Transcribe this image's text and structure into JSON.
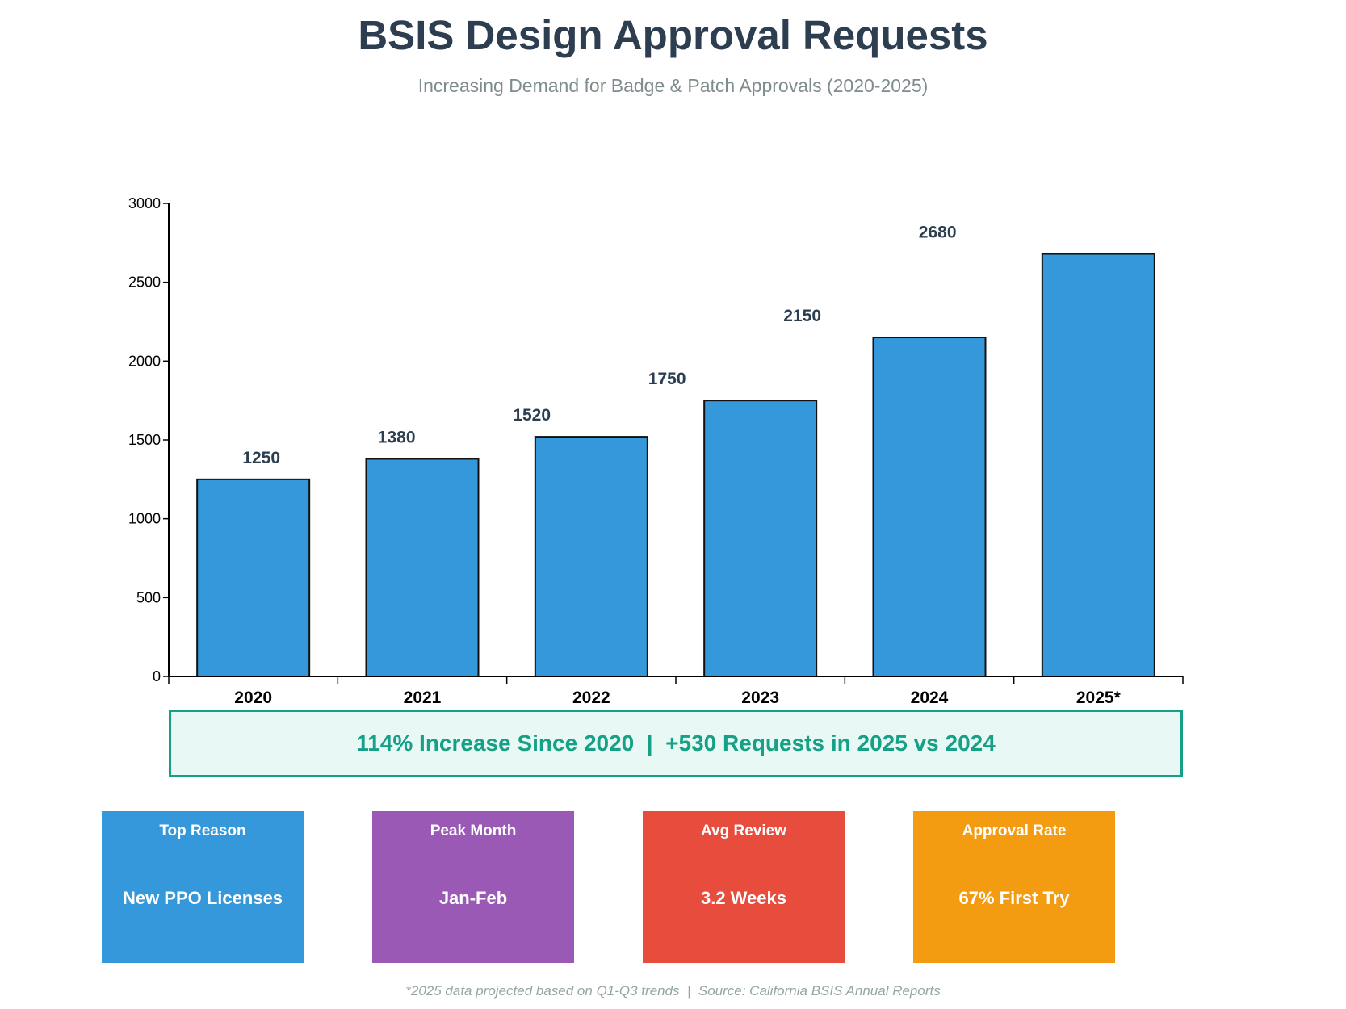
{
  "title": "BSIS Design Approval Requests",
  "subtitle": "Increasing Demand for Badge & Patch Approvals (2020-2025)",
  "chart_data": {
    "type": "bar",
    "categories": [
      "2020",
      "2021",
      "2022",
      "2023",
      "2024",
      "2025*"
    ],
    "values": [
      1250,
      1380,
      1520,
      1750,
      2150,
      2680
    ],
    "data_labels": [
      "1250",
      "1380",
      "1520",
      "1750",
      "2150",
      "2680"
    ],
    "ylim": [
      0,
      3000
    ],
    "yticks": [
      0,
      500,
      1000,
      1500,
      2000,
      2500,
      3000
    ],
    "grid": false,
    "bar_color": "#3498db"
  },
  "banner": {
    "text": "114% Increase Since 2020  |  +530 Requests in 2025 vs 2024",
    "color": "#16a085"
  },
  "cards": [
    {
      "title": "Top Reason",
      "value": "New PPO Licenses",
      "color": "#3498db"
    },
    {
      "title": "Peak Month",
      "value": "Jan-Feb",
      "color": "#9b59b6"
    },
    {
      "title": "Avg Review",
      "value": "3.2 Weeks",
      "color": "#e74c3c"
    },
    {
      "title": "Approval Rate",
      "value": "67% First Try",
      "color": "#f39c12"
    }
  ],
  "footer": "*2025 data projected based on Q1-Q3 trends  |  Source: California BSIS Annual Reports"
}
